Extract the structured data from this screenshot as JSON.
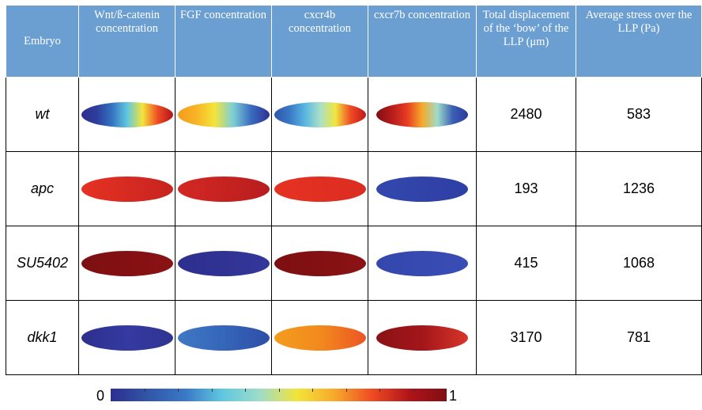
{
  "header": {
    "embryo": "Embryo",
    "wnt": "Wnt/ß-catenin concentration",
    "fgf": "FGF concentration",
    "cxcr4b": "cxcr4b concentration",
    "cxcr7b": "cxcr7b concentration",
    "displacement": "Total displacement of the ‘bow’ of the LLP (μm)",
    "stress": "Average stress over the LLP (Pa)"
  },
  "rows": [
    {
      "name": "wt",
      "wnt": [
        "#2e2f8e",
        "#2d3d9c",
        "#3473c0",
        "#5fc8e0",
        "#f3e43a",
        "#ef4b23",
        "#b0141a"
      ],
      "fgf": [
        "#f39c1e",
        "#f7b425",
        "#f3e43a",
        "#7dcfd6",
        "#3a6bc0",
        "#2d3190"
      ],
      "cxcr4b": [
        "#3156a8",
        "#3a78c6",
        "#58b6e0",
        "#a8e0c8",
        "#f0e640",
        "#ef4b23",
        "#c0181a"
      ],
      "cxcr7b": [
        "#7f0f13",
        "#b51c1b",
        "#e63b22",
        "#f6a92a",
        "#9fdcc8",
        "#3b5fb5",
        "#2d3a9a"
      ],
      "displacement": "2480",
      "stress": "583"
    },
    {
      "name": "apc",
      "wnt": [
        "#e53222",
        "#c72320"
      ],
      "fgf": [
        "#d32823",
        "#b81d1e"
      ],
      "cxcr4b": [
        "#e53222",
        "#dc2d22"
      ],
      "cxcr7b": [
        "#3347ad",
        "#2e3fa5"
      ],
      "displacement": "193",
      "stress": "1236"
    },
    {
      "name": "SU5402",
      "wnt": [
        "#7d0f12",
        "#8a1214"
      ],
      "fgf": [
        "#2d2f8e",
        "#35369a"
      ],
      "cxcr4b": [
        "#7d0f12",
        "#8a1214"
      ],
      "cxcr7b": [
        "#3347ad",
        "#3a4db5"
      ],
      "displacement": "415",
      "stress": "1068"
    },
    {
      "name": "dkk1",
      "wnt": [
        "#2d2f8e",
        "#343aa0",
        "#2f3492"
      ],
      "fgf": [
        "#3f78c4",
        "#3566b8",
        "#2e4ea8"
      ],
      "cxcr4b": [
        "#f39c1e",
        "#f28a1e",
        "#ec5523"
      ],
      "cxcr7b": [
        "#8a1214",
        "#a3161a",
        "#d8352a"
      ],
      "displacement": "3170",
      "stress": "781"
    }
  ],
  "colorbar": {
    "min_label": "0",
    "max_label": "1",
    "colors": [
      "#2d2f8e",
      "#3156a8",
      "#3a78c6",
      "#5fc8e0",
      "#9fdcc8",
      "#f3e43a",
      "#f6a92a",
      "#ef4b23",
      "#b0141a",
      "#7f0f13"
    ]
  }
}
